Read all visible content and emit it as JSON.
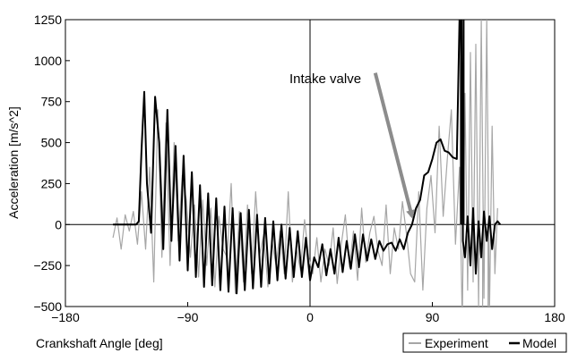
{
  "chart_data": {
    "type": "line",
    "xlabel": "Crankshaft Angle [deg]",
    "ylabel": "Acceleration  [m/s^2]",
    "xlim": [
      -180,
      180
    ],
    "ylim": [
      -500,
      1250
    ],
    "xticks": [
      -180,
      -90,
      0,
      90,
      180
    ],
    "xtick_labels": [
      "−180",
      "−90",
      "0",
      "90",
      "180"
    ],
    "yticks": [
      -500,
      -250,
      0,
      250,
      500,
      750,
      1000,
      1250
    ],
    "ytick_labels": [
      "−500",
      "−250",
      "0",
      "250",
      "500",
      "750",
      "1000",
      "1250"
    ],
    "grid": false,
    "legend_position": "bottom-right",
    "annotation": {
      "text": "Intake valve",
      "arrow_to": [
        75,
        50
      ]
    },
    "series": [
      {
        "name": "Experiment",
        "color": "#a6a6a6",
        "x": [
          -145,
          -142,
          -139,
          -136,
          -133,
          -130,
          -127,
          -124,
          -121,
          -118,
          -115,
          -112,
          -109,
          -106,
          -103,
          -100,
          -97,
          -94,
          -91,
          -88,
          -85,
          -82,
          -79,
          -76,
          -73,
          -70,
          -67,
          -64,
          -61,
          -58,
          -55,
          -52,
          -49,
          -46,
          -43,
          -40,
          -37,
          -34,
          -31,
          -28,
          -25,
          -22,
          -19,
          -16,
          -13,
          -10,
          -7,
          -4,
          -1,
          2,
          5,
          8,
          11,
          14,
          17,
          20,
          23,
          26,
          29,
          32,
          35,
          38,
          41,
          44,
          47,
          50,
          53,
          56,
          59,
          62,
          65,
          68,
          71,
          74,
          77,
          80,
          83,
          86,
          89,
          92,
          95,
          98,
          101,
          104,
          107,
          110,
          112,
          114,
          116,
          118,
          120,
          122,
          124,
          126,
          128,
          130,
          132,
          134,
          136,
          138
        ],
        "y": [
          -80,
          40,
          -150,
          60,
          -40,
          80,
          -120,
          200,
          -150,
          350,
          -350,
          700,
          -200,
          620,
          -250,
          500,
          -100,
          300,
          150,
          -200,
          120,
          -320,
          150,
          -250,
          100,
          -380,
          50,
          -150,
          -200,
          250,
          -420,
          80,
          -350,
          120,
          -300,
          200,
          -180,
          -60,
          -380,
          -100,
          -250,
          -40,
          -300,
          200,
          -350,
          -150,
          -280,
          30,
          -200,
          -300,
          -80,
          -350,
          -150,
          -250,
          -20,
          -360,
          -120,
          60,
          -260,
          -40,
          -340,
          100,
          -230,
          -50,
          50,
          -160,
          -250,
          120,
          -300,
          -20,
          -150,
          140,
          -60,
          -300,
          -350,
          200,
          -400,
          100,
          300,
          -50,
          600,
          50,
          400,
          700,
          -120,
          350,
          -600,
          800,
          -400,
          1050,
          -350,
          1100,
          -500,
          1250,
          -450,
          1250,
          -550,
          600,
          -300,
          100
        ],
        "cut_bottom_x": [
          127,
          131
        ]
      },
      {
        "name": "Model",
        "color": "#000000",
        "x": [
          -145,
          -140,
          -135,
          -130,
          -128,
          -126,
          -124,
          -122,
          -120,
          -117,
          -114,
          -111,
          -108,
          -105,
          -102,
          -99,
          -96,
          -93,
          -90,
          -87,
          -84,
          -81,
          -78,
          -75,
          -72,
          -69,
          -66,
          -63,
          -60,
          -57,
          -54,
          -51,
          -48,
          -45,
          -42,
          -39,
          -36,
          -33,
          -30,
          -27,
          -24,
          -21,
          -18,
          -15,
          -12,
          -9,
          -6,
          -3,
          0,
          3,
          6,
          9,
          12,
          15,
          18,
          21,
          24,
          27,
          30,
          33,
          36,
          39,
          42,
          45,
          48,
          51,
          54,
          57,
          60,
          63,
          66,
          69,
          72,
          75,
          78,
          81,
          84,
          87,
          90,
          93,
          96,
          99,
          102,
          105,
          108,
          110,
          111.5,
          112.5,
          114,
          116,
          118,
          120,
          122,
          124,
          126,
          128,
          130,
          132,
          134,
          136,
          138,
          140
        ],
        "y": [
          0,
          0,
          0,
          0,
          0,
          20,
          450,
          810,
          250,
          -50,
          780,
          500,
          -150,
          700,
          -100,
          480,
          -220,
          420,
          -280,
          320,
          -320,
          240,
          -380,
          190,
          -370,
          160,
          -400,
          110,
          -410,
          100,
          -420,
          70,
          -400,
          90,
          -390,
          60,
          -380,
          40,
          -360,
          20,
          -340,
          0,
          -330,
          -20,
          -320,
          -40,
          -320,
          -80,
          -340,
          -200,
          -260,
          -120,
          -310,
          -150,
          -300,
          -80,
          -290,
          -100,
          -270,
          -60,
          -260,
          -60,
          -220,
          -90,
          -210,
          -100,
          -160,
          -120,
          -110,
          -160,
          -90,
          -150,
          -50,
          0,
          100,
          150,
          300,
          320,
          400,
          500,
          520,
          450,
          440,
          410,
          400,
          1250,
          1250,
          -100,
          -200,
          50,
          -250,
          100,
          -300,
          20,
          -200,
          80,
          -100,
          50,
          -150,
          0,
          20,
          0
        ],
        "cut_top_x": [
          111,
          113
        ]
      }
    ]
  }
}
